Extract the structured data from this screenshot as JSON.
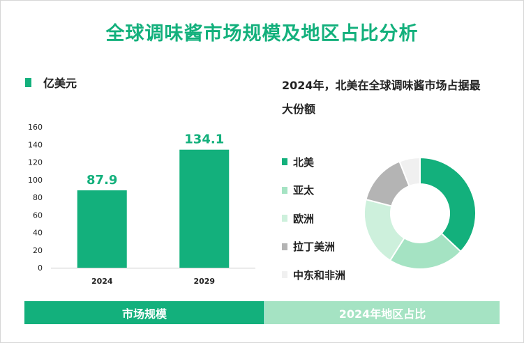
{
  "title": "全球调味酱市场规模及地区占比分析",
  "unit": "亿美元",
  "pie_title": "2024年，北美在全球调味酱市场占据最大份额",
  "footer": {
    "left": "市场规模",
    "right": "2024年地区占比"
  },
  "chart_data": [
    {
      "type": "bar",
      "categories": [
        "2024",
        "2029"
      ],
      "values": [
        87.9,
        134.1
      ],
      "data_labels": [
        "87.9",
        "134.1"
      ],
      "ylim": [
        0,
        160
      ],
      "yticks": [
        0,
        20,
        40,
        60,
        80,
        100,
        120,
        140,
        160
      ],
      "xlabel": "",
      "ylabel": "",
      "color": "#13b07c",
      "grid": false
    },
    {
      "type": "pie",
      "donut": true,
      "categories": [
        "北美",
        "亚太",
        "欧洲",
        "拉丁美洲",
        "中东和非洲"
      ],
      "values": [
        37,
        22,
        20,
        15,
        6
      ],
      "colors": [
        "#13b07c",
        "#a5e3c3",
        "#cdf0dc",
        "#b4b4b4",
        "#f0f0f0"
      ],
      "legend_position": "left"
    }
  ]
}
